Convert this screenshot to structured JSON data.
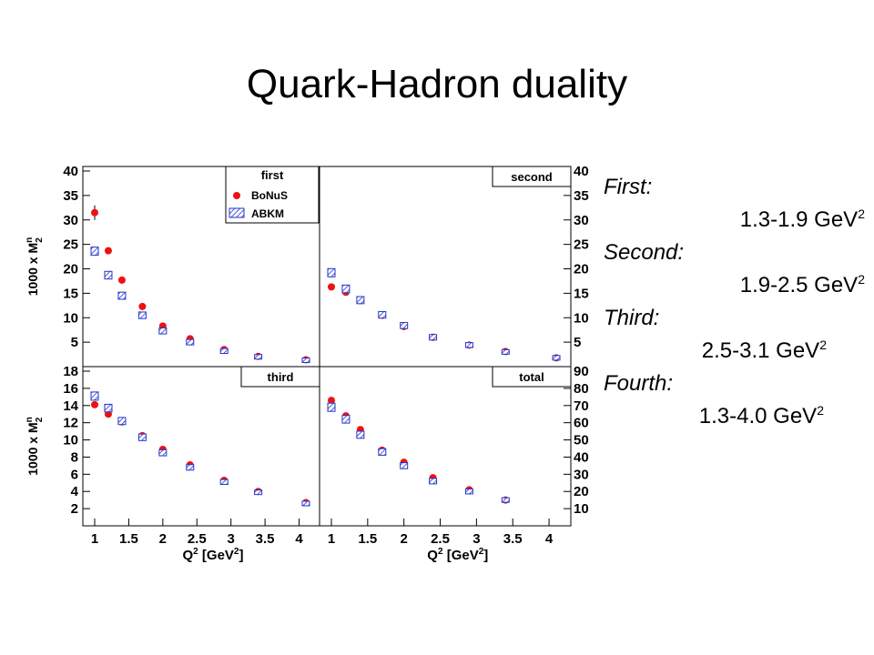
{
  "slide": {
    "title": "Quark-Hadron duality"
  },
  "bins": [
    {
      "name": "First:",
      "range": "1.3-1.9 GeV",
      "power": "2"
    },
    {
      "name": "Second:",
      "range": "1.9-2.5 GeV",
      "power": "2"
    },
    {
      "name": "Third:",
      "range": "2.5-3.1 GeV",
      "power": "2"
    },
    {
      "name": "Fourth:",
      "range": "1.3-4.0 GeV",
      "power": "2"
    }
  ],
  "chart_data": [
    {
      "type": "scatter",
      "panel": "first",
      "title": "first",
      "ylabel": "1000 x M^n_2",
      "xlabel": "",
      "ylim": [
        0,
        40
      ],
      "yticks": [
        5,
        10,
        15,
        20,
        25,
        30,
        35,
        40
      ],
      "xticks": [],
      "legend": {
        "entries": [
          "BoNuS",
          "ABKM"
        ],
        "position": "top-right"
      },
      "series": [
        {
          "name": "BoNuS",
          "marker": "red-circle",
          "color": "#ee1111",
          "x": [
            1.0,
            1.2,
            1.4,
            1.7,
            2.0,
            2.4,
            2.9,
            3.4,
            4.1
          ],
          "y": [
            31.5,
            23.7,
            17.7,
            12.3,
            8.3,
            5.7,
            3.5,
            2.1,
            1.4
          ]
        },
        {
          "name": "ABKM",
          "marker": "blue-hatched-band",
          "color": "#2233cc",
          "x": [
            1.0,
            1.2,
            1.4,
            1.7,
            2.0,
            2.4,
            2.9,
            3.4,
            4.1
          ],
          "y": [
            23.6,
            18.7,
            14.5,
            10.5,
            7.3,
            5.0,
            3.2,
            2.0,
            1.3
          ]
        }
      ]
    },
    {
      "type": "scatter",
      "panel": "second",
      "title": "second",
      "ylabel": "",
      "xlabel": "",
      "ylim": [
        0,
        40
      ],
      "yticks": [
        5,
        10,
        15,
        20,
        25,
        30,
        35,
        40
      ],
      "xticks": [],
      "series": [
        {
          "name": "BoNuS",
          "marker": "red-circle",
          "color": "#ee1111",
          "x": [
            1.0,
            1.2,
            1.4,
            1.7,
            2.0,
            2.4,
            2.9,
            3.4,
            4.1
          ],
          "y": [
            16.3,
            15.2,
            13.5,
            10.5,
            8.2,
            6.0,
            4.4,
            3.1,
            1.8
          ]
        },
        {
          "name": "ABKM",
          "marker": "blue-hatched-band",
          "color": "#2233cc",
          "x": [
            1.0,
            1.2,
            1.4,
            1.7,
            2.0,
            2.4,
            2.9,
            3.4,
            4.1
          ],
          "y": [
            19.2,
            15.9,
            13.6,
            10.6,
            8.4,
            6.0,
            4.4,
            3.0,
            1.8
          ]
        }
      ]
    },
    {
      "type": "scatter",
      "panel": "third",
      "title": "third",
      "ylabel": "1000 x M^n_2",
      "xlabel": "Q^2 [GeV^2]",
      "ylim": [
        0,
        18
      ],
      "yticks": [
        2,
        4,
        6,
        8,
        10,
        12,
        14,
        16,
        18
      ],
      "xticks": [
        "1",
        "1.5",
        "2",
        "2.5",
        "3",
        "3.5",
        "4"
      ],
      "series": [
        {
          "name": "BoNuS",
          "marker": "red-circle",
          "color": "#ee1111",
          "x": [
            1.0,
            1.2,
            1.4,
            1.7,
            2.0,
            2.4,
            2.9,
            3.4,
            4.1
          ],
          "y": [
            14.1,
            13.0,
            12.1,
            10.5,
            8.9,
            7.1,
            5.3,
            4.0,
            2.7
          ]
        },
        {
          "name": "ABKM",
          "marker": "blue-hatched-band",
          "color": "#2233cc",
          "x": [
            1.0,
            1.2,
            1.4,
            1.7,
            2.0,
            2.4,
            2.9,
            3.4,
            4.1
          ],
          "y": [
            15.1,
            13.7,
            12.2,
            10.3,
            8.5,
            6.8,
            5.1,
            3.9,
            2.6
          ]
        }
      ]
    },
    {
      "type": "scatter",
      "panel": "total",
      "title": "total",
      "ylabel": "",
      "xlabel": "Q^2 [GeV^2]",
      "ylim": [
        0,
        90
      ],
      "yticks": [
        10,
        20,
        30,
        40,
        50,
        60,
        70,
        80,
        90
      ],
      "xticks": [
        "1",
        "1.5",
        "2",
        "2.5",
        "3",
        "3.5",
        "4"
      ],
      "series": [
        {
          "name": "BoNuS",
          "marker": "red-circle",
          "color": "#ee1111",
          "x": [
            1.0,
            1.2,
            1.4,
            1.7,
            2.0,
            2.4,
            2.9,
            3.4
          ],
          "y": [
            73,
            64,
            56,
            44,
            37,
            28,
            21,
            15
          ]
        },
        {
          "name": "ABKM",
          "marker": "blue-hatched-band",
          "color": "#2233cc",
          "x": [
            1.0,
            1.2,
            1.4,
            1.7,
            2.0,
            2.4,
            2.9,
            3.4
          ],
          "y": [
            69,
            62,
            53,
            43,
            35,
            26,
            20,
            15
          ]
        }
      ]
    }
  ]
}
